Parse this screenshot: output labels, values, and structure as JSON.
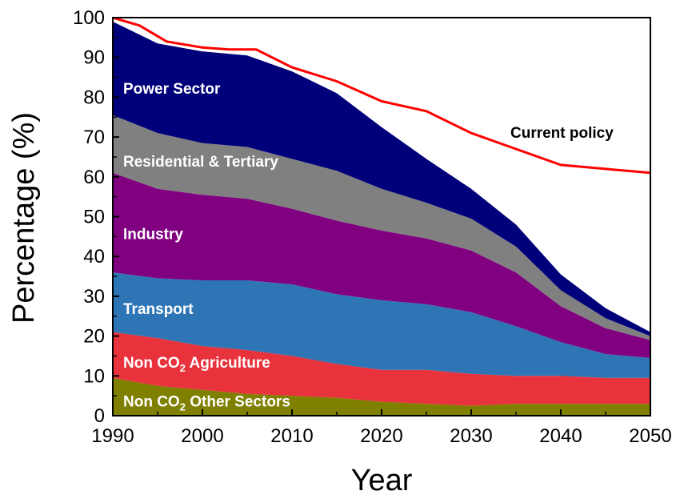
{
  "chart_data": {
    "type": "area",
    "xlabel": "Year",
    "ylabel": "Percentage (%)",
    "xlim": [
      1990,
      2050
    ],
    "ylim": [
      0,
      100
    ],
    "xticks": [
      1990,
      2000,
      2010,
      2020,
      2030,
      2040,
      2050
    ],
    "yticks": [
      0,
      10,
      20,
      30,
      40,
      50,
      60,
      70,
      80,
      90,
      100
    ],
    "x": [
      1990,
      1995,
      2000,
      2005,
      2010,
      2015,
      2020,
      2025,
      2030,
      2035,
      2040,
      2045,
      2050
    ],
    "stacked": true,
    "series": [
      {
        "name": "Non CO2 Other Sectors",
        "display_name": "Non CO",
        "subscript": "2",
        "display_suffix": " Other Sectors",
        "color": "#808000",
        "values": [
          9.5,
          7.5,
          6.5,
          5.5,
          5.0,
          4.5,
          3.5,
          3.0,
          2.5,
          3.0,
          3.0,
          3.0,
          3.0
        ]
      },
      {
        "name": "Non CO2 Agriculture",
        "display_name": "Non CO",
        "subscript": "2",
        "display_suffix": " Agriculture",
        "color": "#e8323c",
        "values": [
          11.5,
          12.0,
          11.0,
          11.0,
          10.0,
          8.5,
          8.0,
          8.5,
          8.0,
          7.0,
          7.0,
          6.5,
          6.5
        ]
      },
      {
        "name": "Transport",
        "color": "#2e75b6",
        "values": [
          15.0,
          15.0,
          16.5,
          17.5,
          18.0,
          17.5,
          17.5,
          16.5,
          15.5,
          12.5,
          8.5,
          6.0,
          5.0
        ]
      },
      {
        "name": "Industry",
        "color": "#800080",
        "values": [
          25.0,
          22.5,
          21.5,
          20.5,
          19.0,
          18.5,
          17.5,
          16.5,
          15.5,
          13.5,
          9.0,
          6.5,
          4.5
        ]
      },
      {
        "name": "Residential & Tertiary",
        "color": "#808080",
        "values": [
          14.5,
          14.0,
          13.0,
          13.0,
          12.5,
          12.5,
          10.5,
          9.0,
          8.0,
          6.5,
          4.0,
          2.5,
          1.0
        ]
      },
      {
        "name": "Power Sector",
        "color": "#00007a",
        "values": [
          23.5,
          22.5,
          23.0,
          23.0,
          22.0,
          19.5,
          15.5,
          11.0,
          7.5,
          5.5,
          4.0,
          2.5,
          1.0
        ]
      }
    ],
    "lines": [
      {
        "name": "Current policy",
        "color": "#ff0000",
        "x": [
          1990,
          1993,
          1996,
          2000,
          2003,
          2006,
          2010,
          2015,
          2020,
          2025,
          2030,
          2035,
          2040,
          2045,
          2050
        ],
        "values": [
          100,
          98,
          94,
          92.5,
          92,
          92,
          87.5,
          84,
          79,
          76.5,
          71,
          67,
          63,
          62,
          61
        ]
      }
    ]
  }
}
